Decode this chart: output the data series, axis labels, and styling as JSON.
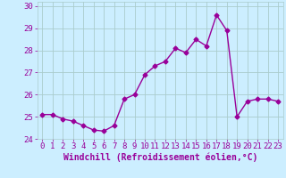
{
  "x": [
    0,
    1,
    2,
    3,
    4,
    5,
    6,
    7,
    8,
    9,
    10,
    11,
    12,
    13,
    14,
    15,
    16,
    17,
    18,
    19,
    20,
    21,
    22,
    23
  ],
  "y": [
    25.1,
    25.1,
    24.9,
    24.8,
    24.6,
    24.4,
    24.35,
    24.6,
    25.8,
    26.0,
    26.9,
    27.3,
    27.5,
    28.1,
    27.9,
    28.5,
    28.2,
    29.6,
    28.9,
    25.0,
    25.7,
    25.8,
    25.8,
    25.7
  ],
  "line_color": "#990099",
  "marker": "D",
  "marker_size": 2.5,
  "line_width": 1.0,
  "background_color": "#cceeff",
  "grid_color": "#aacccc",
  "xlabel": "Windchill (Refroidissement éolien,°C)",
  "xlabel_fontsize": 7,
  "tick_fontsize": 6.5,
  "ylim": [
    24.0,
    30.2
  ],
  "xlim": [
    -0.5,
    23.5
  ],
  "yticks": [
    24,
    25,
    26,
    27,
    28,
    29,
    30
  ],
  "xtick_labels": [
    "0",
    "1",
    "2",
    "3",
    "4",
    "5",
    "6",
    "7",
    "8",
    "9",
    "10",
    "11",
    "12",
    "13",
    "14",
    "15",
    "16",
    "17",
    "18",
    "19",
    "20",
    "21",
    "22",
    "23"
  ]
}
